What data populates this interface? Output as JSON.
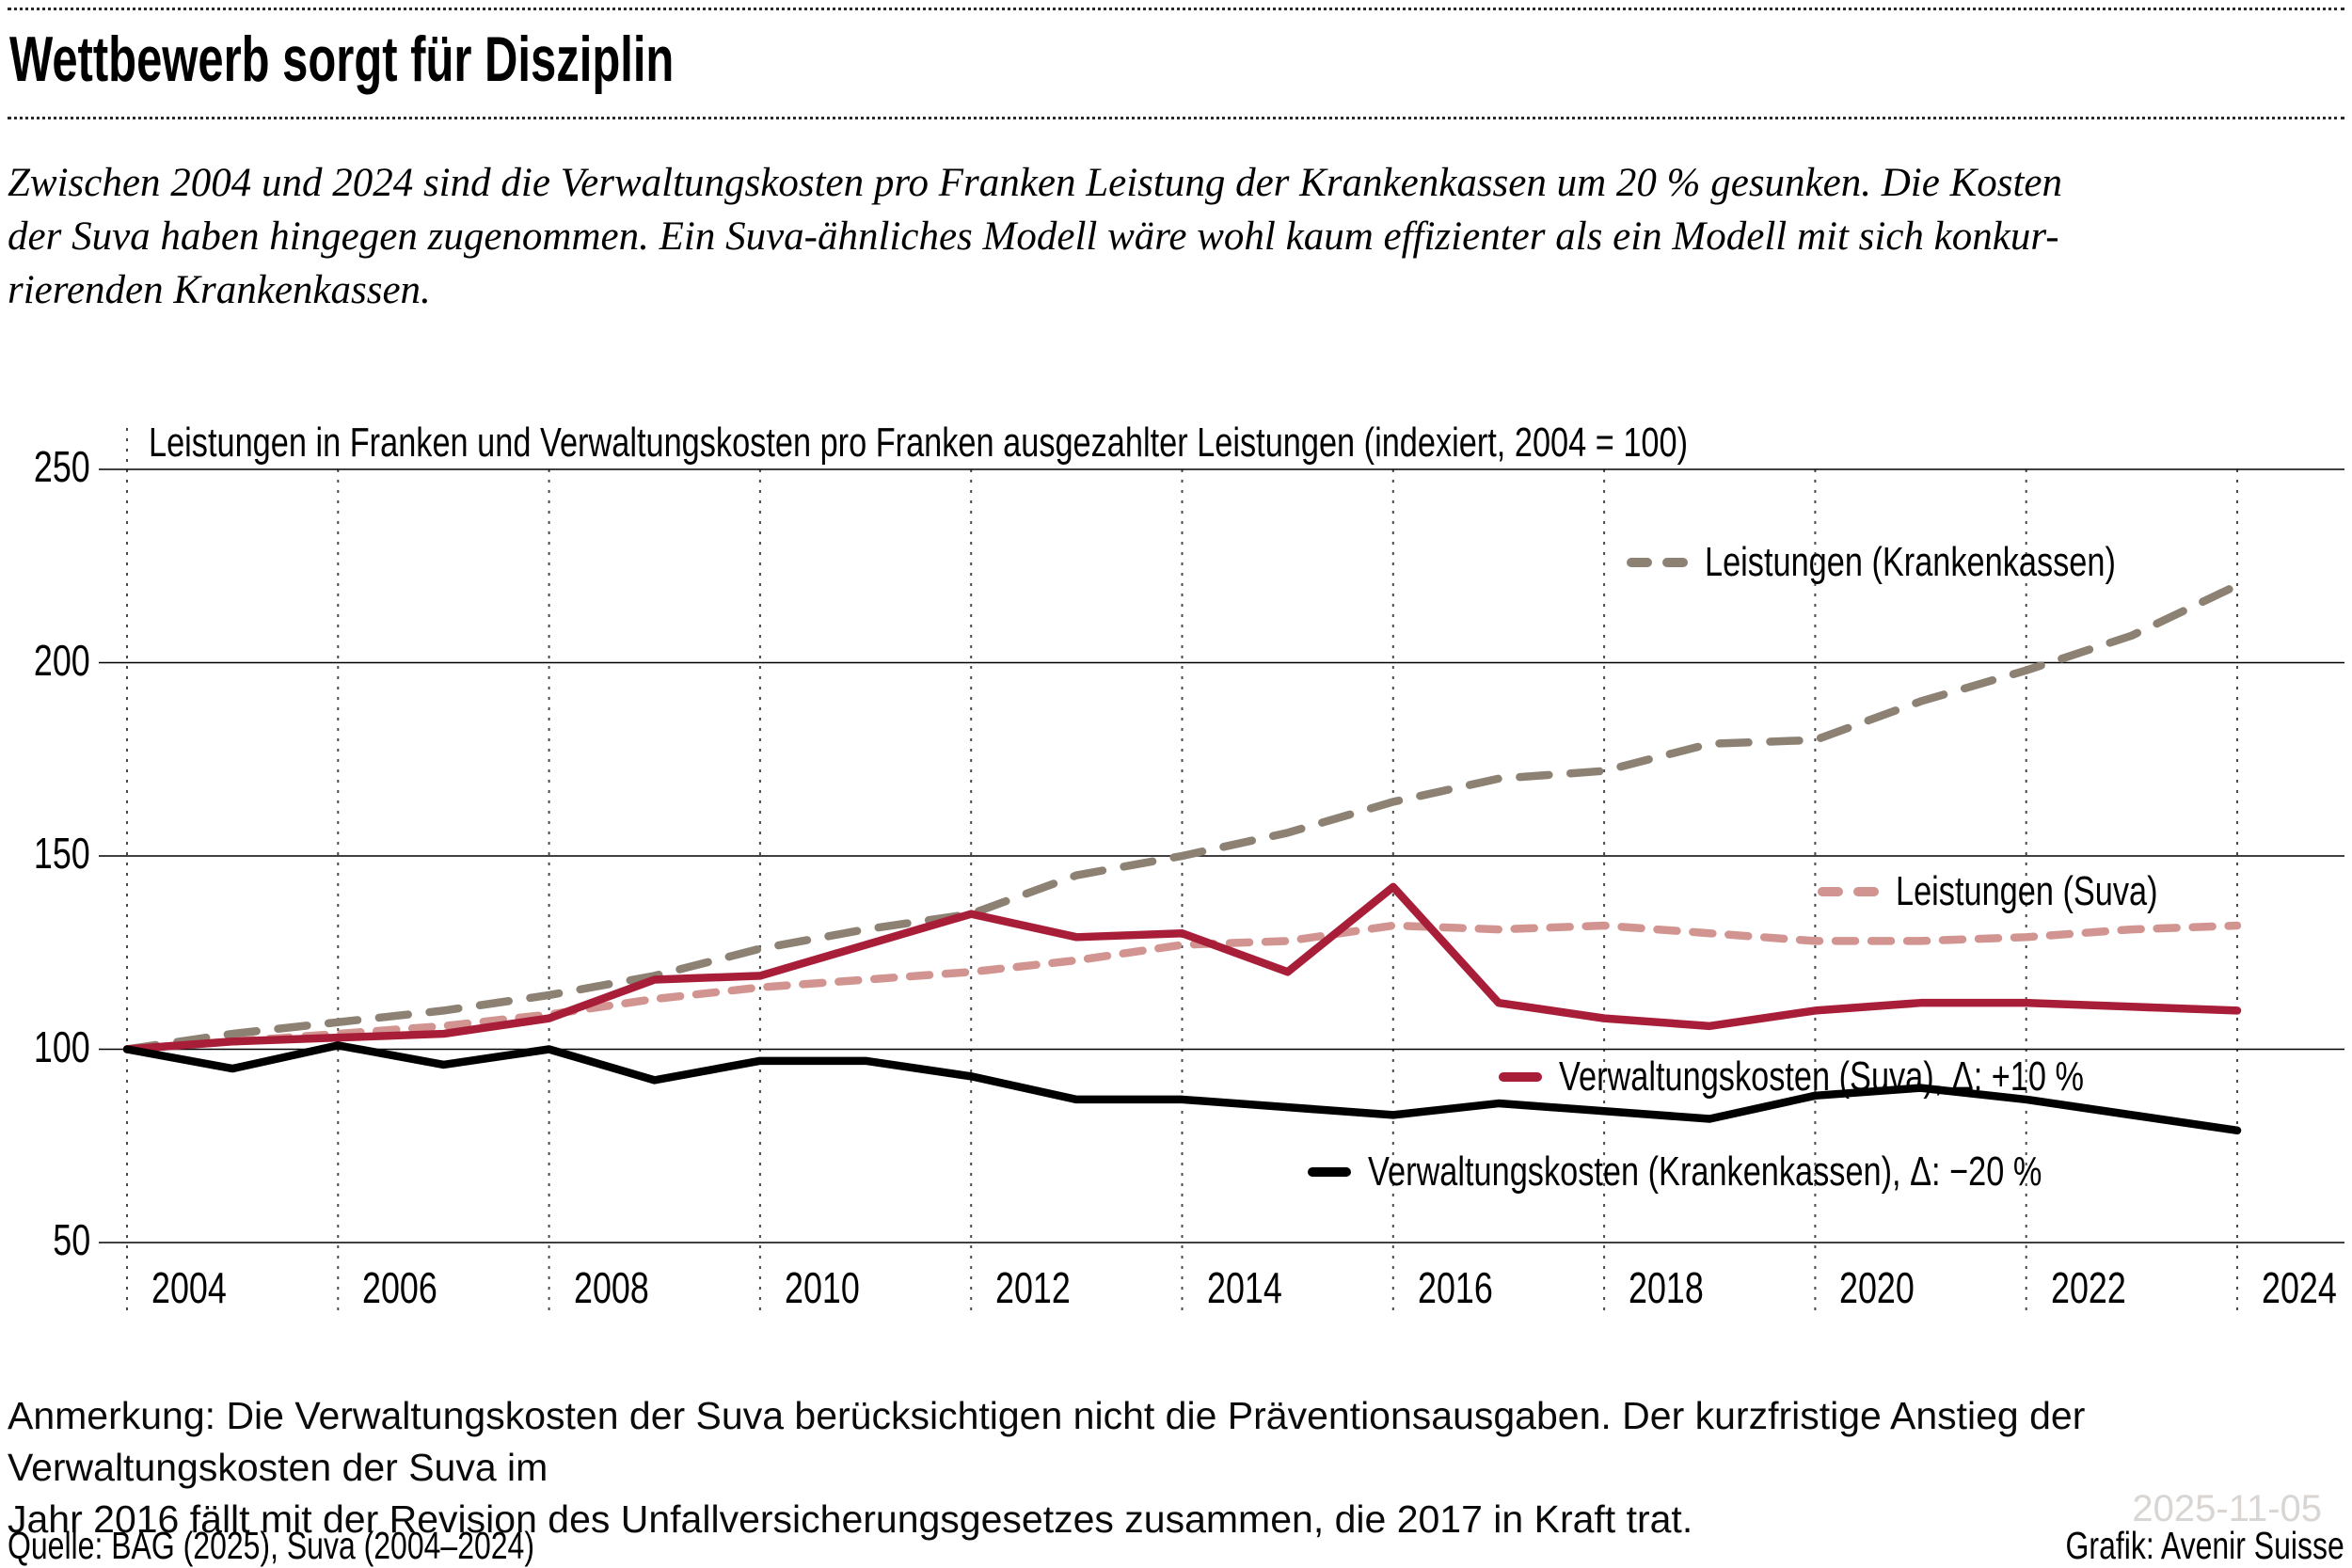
{
  "header": {
    "title": "Wettbewerb sorgt für Disziplin",
    "subtitle_lines": [
      "Zwischen 2004 und 2024 sind die Verwaltungskosten pro Franken Leistung der Krankenkassen um 20 % gesunken. Die Kosten",
      "der Suva haben hingegen zugenommen. Ein Suva-ähnliches Modell wäre wohl kaum effizienter als ein Modell mit sich konkur-",
      "rierenden Krankenkassen."
    ]
  },
  "chart": {
    "title": "Leistungen in Franken und Verwaltungskosten pro Franken ausgezahlter Leistungen (indexiert, 2004 = 100)",
    "y_ticks": [
      250,
      200,
      150,
      100,
      50
    ],
    "x_ticks": [
      2004,
      2006,
      2008,
      2010,
      2012,
      2014,
      2016,
      2018,
      2020,
      2022,
      2024
    ]
  },
  "chart_data": {
    "type": "line",
    "title": "Leistungen in Franken und Verwaltungskosten pro Franken ausgezahlter Leistungen (indexiert, 2004 = 100)",
    "xlabel": "",
    "ylabel": "",
    "ylim": [
      50,
      250
    ],
    "xlim": [
      2004,
      2024
    ],
    "grid": "horizontal-solid, vertical-dotted-every-2-years",
    "legend_position": "inline-annotations",
    "x": [
      2004,
      2005,
      2006,
      2007,
      2008,
      2009,
      2010,
      2011,
      2012,
      2013,
      2014,
      2015,
      2016,
      2017,
      2018,
      2019,
      2020,
      2021,
      2022,
      2023,
      2024
    ],
    "series": [
      {
        "id": "leistungen-krankenkassen",
        "label": "Leistungen (Krankenkassen)",
        "color": "#8c8172",
        "line_style": "dashed",
        "values": [
          100,
          104,
          107,
          110,
          114,
          119,
          126,
          131,
          135,
          145,
          150,
          156,
          164,
          170,
          172,
          179,
          180,
          190,
          198,
          207,
          220
        ]
      },
      {
        "id": "leistungen-suva",
        "label": "Leistungen (Suva)",
        "color": "#d29490",
        "line_style": "dashed",
        "values": [
          100,
          102,
          104,
          106,
          109,
          113,
          116,
          118,
          120,
          123,
          127,
          128,
          132,
          131,
          132,
          130,
          128,
          128,
          129,
          131,
          132
        ]
      },
      {
        "id": "verwaltungskosten-suva",
        "label": "Verwaltungskosten (Suva), Δ: +10 %",
        "color": "#a81e38",
        "line_style": "solid",
        "values": [
          100,
          102,
          103,
          104,
          108,
          118,
          119,
          127,
          135,
          129,
          130,
          120,
          142,
          112,
          108,
          106,
          110,
          112,
          112,
          111,
          110
        ]
      },
      {
        "id": "verwaltungskosten-krankenkassen",
        "label": "Verwaltungskosten (Krankenkassen), Δ: −20 %",
        "color": "#000000",
        "line_style": "solid",
        "values": [
          100,
          95,
          101,
          96,
          100,
          92,
          97,
          97,
          93,
          87,
          87,
          85,
          83,
          86,
          84,
          82,
          88,
          90,
          87,
          83,
          79
        ]
      }
    ]
  },
  "footnote": {
    "lines": [
      "Anmerkung: Die Verwaltungskosten der Suva berücksichtigen nicht die Präventionsausgaben. Der kurzfristige Anstieg der Verwaltungskosten der Suva im",
      "Jahr 2016 fällt mit der Revision des Unfallversicherungsgesetzes zusammen, die 2017 in Kraft trat."
    ]
  },
  "source": {
    "left": "Quelle: BAG (2025), Suva (2004–2024)",
    "right": "Grafik: Avenir Suisse"
  },
  "watermark": "2025-11-05"
}
